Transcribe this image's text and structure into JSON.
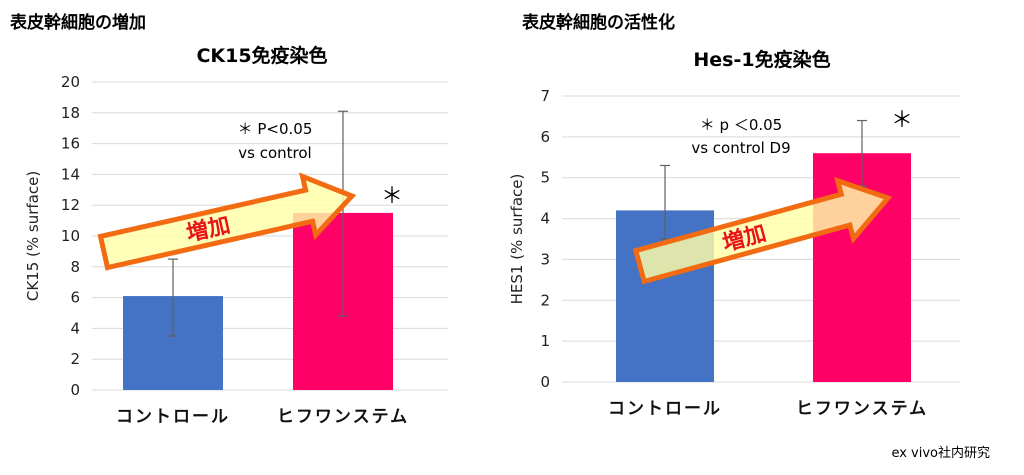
{
  "headings": {
    "left": "表皮幹細胞の増加",
    "right": "表皮幹細胞の活性化"
  },
  "credit": "ex vivo社内研究",
  "colors": {
    "control": "#4472c4",
    "treatment": "#ff0066",
    "arrow_fill": "#ffffa8",
    "arrow_stroke": "#f26b12",
    "arrow_text": "#e8141a",
    "grid": "#d9d9d9",
    "error_bar": "#606060"
  },
  "chart_data": [
    {
      "type": "bar",
      "title": "CK15免疫染色",
      "ylabel": "CK15 (% surface)",
      "xlabel": "",
      "ylim": [
        0,
        20
      ],
      "yticks": [
        0,
        2,
        4,
        6,
        8,
        10,
        12,
        14,
        16,
        18,
        20
      ],
      "categories": [
        "コントロール",
        "ヒフワンステム"
      ],
      "values": [
        6.1,
        11.5
      ],
      "error_upper": [
        8.5,
        18.1
      ],
      "error_lower": [
        3.5,
        4.8
      ],
      "grid": true,
      "annotations": {
        "note_line1": "＊ P<0.05",
        "note_line2": "vs control",
        "star": "＊",
        "arrow_label": "増加"
      }
    },
    {
      "type": "bar",
      "title": "Hes-1免疫染色",
      "ylabel": "HES1 (% surface)",
      "xlabel": "",
      "ylim": [
        0,
        7
      ],
      "yticks": [
        0,
        1,
        2,
        3,
        4,
        5,
        6,
        7
      ],
      "categories": [
        "コントロール",
        "ヒフワンステム"
      ],
      "values": [
        4.2,
        5.6
      ],
      "error_upper": [
        5.3,
        6.4
      ],
      "error_lower": [
        3.5,
        4.8
      ],
      "grid": true,
      "annotations": {
        "note_line1": "＊ p ＜0.05",
        "note_line2": "vs control D9",
        "star": "＊",
        "arrow_label": "増加"
      }
    }
  ]
}
